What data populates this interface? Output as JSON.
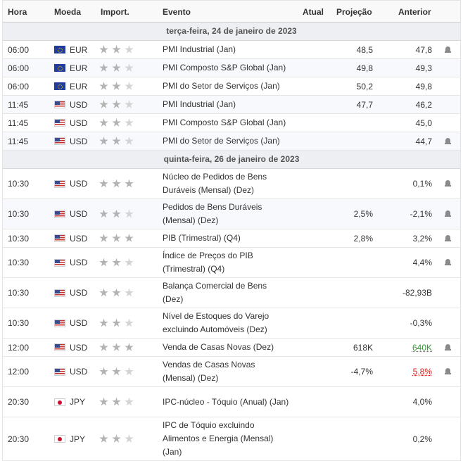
{
  "header": {
    "hora": "Hora",
    "moeda": "Moeda",
    "import": "Import.",
    "evento": "Evento",
    "atual": "Atual",
    "projecao": "Projeção",
    "anterior": "Anterior"
  },
  "date1": "terça-feira, 24 de janeiro de 2023",
  "date2": "quinta-feira, 26 de janeiro de 2023",
  "colors": {
    "positive": "#2e9f2e",
    "negative": "#d0201c",
    "star_active": "#b3b3b3",
    "star_inactive": "#d4d4d4"
  },
  "rows": [
    {
      "time": "06:00",
      "currency": "EUR",
      "flag": "eu-flag-icon",
      "importance": 2,
      "event": "PMI Industrial (Jan)",
      "actual": "",
      "forecast": "48,5",
      "previous": "47,8",
      "bell": true
    },
    {
      "time": "06:00",
      "currency": "EUR",
      "flag": "eu-flag-icon",
      "importance": 2,
      "event": "PMI Composto S&P Global (Jan)",
      "actual": "",
      "forecast": "49,8",
      "previous": "49,3",
      "bell": false
    },
    {
      "time": "06:00",
      "currency": "EUR",
      "flag": "eu-flag-icon",
      "importance": 2,
      "event": "PMI do Setor de Serviços (Jan)",
      "actual": "",
      "forecast": "50,2",
      "previous": "49,8",
      "bell": false
    },
    {
      "time": "11:45",
      "currency": "USD",
      "flag": "us-flag-icon",
      "importance": 2,
      "event": "PMI Industrial (Jan)",
      "actual": "",
      "forecast": "47,7",
      "previous": "46,2",
      "bell": false
    },
    {
      "time": "11:45",
      "currency": "USD",
      "flag": "us-flag-icon",
      "importance": 2,
      "event": "PMI Composto S&P Global (Jan)",
      "actual": "",
      "forecast": "",
      "previous": "45,0",
      "bell": false
    },
    {
      "time": "11:45",
      "currency": "USD",
      "flag": "us-flag-icon",
      "importance": 2,
      "event": "PMI do Setor de Serviços (Jan)",
      "actual": "",
      "forecast": "",
      "previous": "44,7",
      "bell": true
    },
    {
      "time": "10:30",
      "currency": "USD",
      "flag": "us-flag-icon",
      "importance": 3,
      "event": "Núcleo de Pedidos de Bens Duráveis (Mensal) (Dez)",
      "actual": "",
      "forecast": "",
      "previous": "0,1%",
      "bell": true
    },
    {
      "time": "10:30",
      "currency": "USD",
      "flag": "us-flag-icon",
      "importance": 2,
      "event": "Pedidos de Bens Duráveis (Mensal) (Dez)",
      "actual": "",
      "forecast": "2,5%",
      "previous": "-2,1%",
      "bell": true
    },
    {
      "time": "10:30",
      "currency": "USD",
      "flag": "us-flag-icon",
      "importance": 3,
      "event": "PIB (Trimestral) (Q4)",
      "actual": "",
      "forecast": "2,8%",
      "previous": "3,2%",
      "bell": true
    },
    {
      "time": "10:30",
      "currency": "USD",
      "flag": "us-flag-icon",
      "importance": 2,
      "event": "Índice de Preços do PIB (Trimestral) (Q4)",
      "actual": "",
      "forecast": "",
      "previous": "4,4%",
      "bell": true
    },
    {
      "time": "10:30",
      "currency": "USD",
      "flag": "us-flag-icon",
      "importance": 2,
      "event": "Balança Comercial de Bens (Dez)",
      "actual": "",
      "forecast": "",
      "previous": "-82,93B",
      "bell": false
    },
    {
      "time": "10:30",
      "currency": "USD",
      "flag": "us-flag-icon",
      "importance": 2,
      "event": "Nível de Estoques do Varejo excluindo Automóveis (Dez)",
      "actual": "",
      "forecast": "",
      "previous": "-0,3%",
      "bell": false
    },
    {
      "time": "12:00",
      "currency": "USD",
      "flag": "us-flag-icon",
      "importance": 3,
      "event": "Venda de Casas Novas (Dez)",
      "actual": "",
      "forecast": "618K",
      "previous": "640K",
      "previous_color": "green",
      "bell": true
    },
    {
      "time": "12:00",
      "currency": "USD",
      "flag": "us-flag-icon",
      "importance": 2,
      "event": "Vendas de Casas Novas (Mensal) (Dez)",
      "actual": "",
      "forecast": "-4,7%",
      "previous": "5,8%",
      "previous_color": "red",
      "bell": true
    },
    {
      "time": "20:30",
      "currency": "JPY",
      "flag": "jp-flag-icon",
      "importance": 2,
      "event": "IPC-núcleo - Tóquio (Anual) (Jan)",
      "actual": "",
      "forecast": "",
      "previous": "4,0%",
      "bell": false
    },
    {
      "time": "20:30",
      "currency": "JPY",
      "flag": "jp-flag-icon",
      "importance": 2,
      "event": "IPC de Tóquio excluindo Alimentos e Energia (Mensal) (Jan)",
      "actual": "",
      "forecast": "",
      "previous": "0,2%",
      "bell": false
    }
  ]
}
